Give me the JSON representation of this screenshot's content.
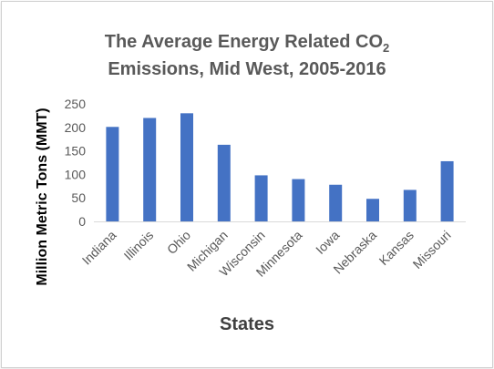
{
  "chart_data": {
    "type": "bar",
    "title_line1_prefix": "The Average  Energy Related  CO",
    "title_subscript": "2",
    "title_line2": "Emissions,  Mid West, 2005-2016",
    "xlabel": "States",
    "ylabel": "Million  Metric  Tons  (MMT)",
    "categories": [
      "Indiana",
      "Illinois",
      "Ohio",
      "Michigan",
      "Wisconsin",
      "Minnesota",
      "Iowa",
      "Nebraska",
      "Kansas",
      "Missouri"
    ],
    "values": [
      201,
      220,
      230,
      163,
      98,
      90,
      78,
      48,
      67,
      128
    ],
    "ylim": [
      0,
      250
    ],
    "yticks": [
      "0",
      "50",
      "100",
      "150",
      "200",
      "250"
    ],
    "grid": false,
    "legend": "none",
    "bar_color": "#4472c4"
  }
}
